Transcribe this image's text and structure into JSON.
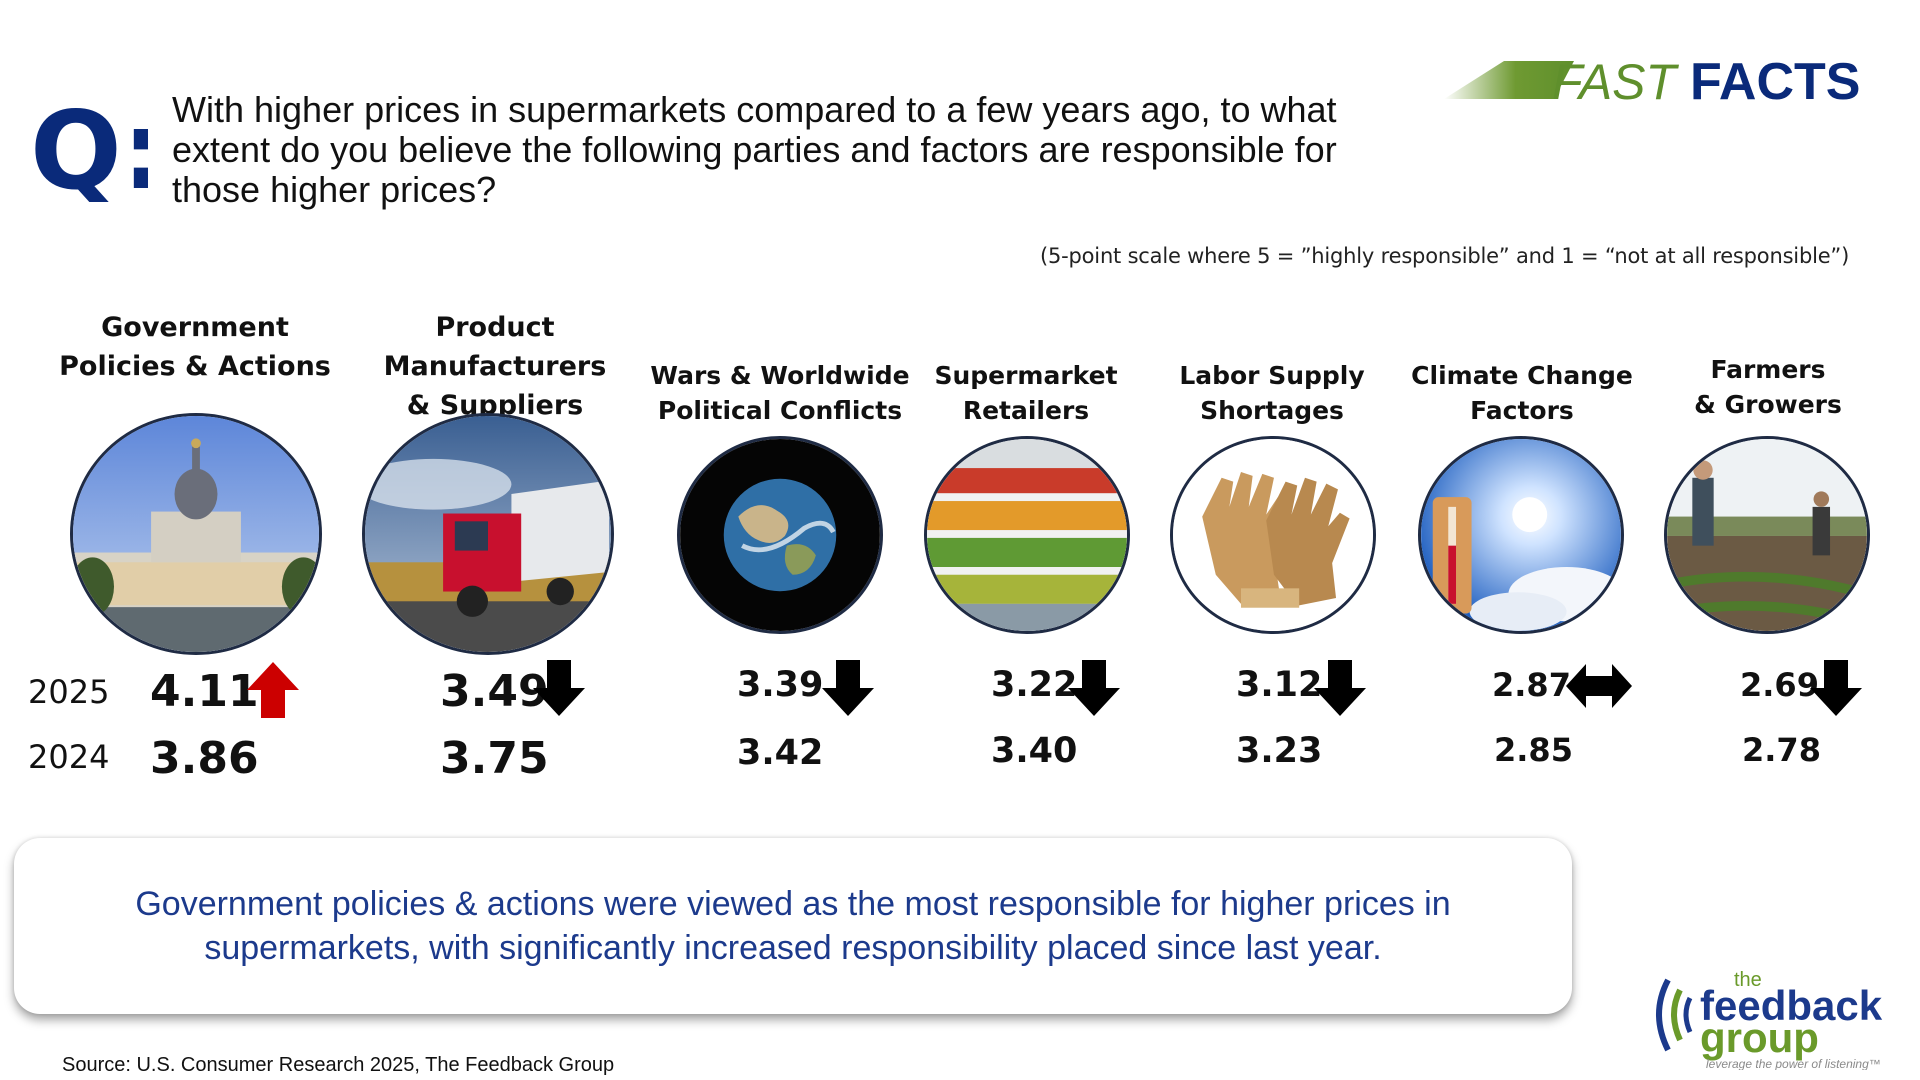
{
  "header": {
    "q_label": "Q:",
    "question": "With higher prices in supermarkets compared to a few years ago, to what extent do you believe the following parties and factors are responsible for those higher prices?",
    "brand_fast": "FAST",
    "brand_facts": "FACTS",
    "scale_note": "(5-point scale where 5 = ”highly responsible” and 1 = “not at all responsible”)"
  },
  "year_labels": {
    "current": "2025",
    "previous": "2024"
  },
  "chart_data": {
    "type": "table",
    "title": "",
    "categories": [
      "Government Policies & Actions",
      "Product Manufacturers & Suppliers",
      "Wars & Worldwide Political Conflicts",
      "Supermarket Retailers",
      "Labor Supply Shortages",
      "Climate Change Factors",
      "Farmers & Growers"
    ],
    "series": [
      {
        "name": "2025",
        "values": [
          4.11,
          3.49,
          3.39,
          3.22,
          3.12,
          2.87,
          2.69
        ]
      },
      {
        "name": "2024",
        "values": [
          3.86,
          3.75,
          3.42,
          3.4,
          3.23,
          2.85,
          2.78
        ]
      }
    ],
    "trend": [
      "up",
      "down",
      "down",
      "down",
      "down",
      "flat",
      "down"
    ],
    "colors": {
      "up": "#cc0000",
      "down": "#000000",
      "flat": "#000000"
    }
  },
  "items": [
    {
      "label": "Government\nPolicies & Actions",
      "v2025": "4.11",
      "v2024": "3.86",
      "image": "capitol-building-icon"
    },
    {
      "label": "Product Manufacturers\n& Suppliers",
      "v2025": "3.49",
      "v2024": "3.75",
      "image": "truck-icon"
    },
    {
      "label": "Wars & Worldwide\nPolitical Conflicts",
      "v2025": "3.39",
      "v2024": "3.42",
      "image": "globe-icon"
    },
    {
      "label": "Supermarket\nRetailers",
      "v2025": "3.22",
      "v2024": "3.40",
      "image": "produce-shelf-icon"
    },
    {
      "label": "Labor Supply\nShortages",
      "v2025": "3.12",
      "v2024": "3.23",
      "image": "work-gloves-icon"
    },
    {
      "label": "Climate Change\nFactors",
      "v2025": "2.87",
      "v2024": "2.85",
      "image": "sun-thermometer-icon"
    },
    {
      "label": "Farmers\n& Growers",
      "v2025": "2.69",
      "v2024": "2.78",
      "image": "farmers-field-icon"
    }
  ],
  "callout": "Government policies & actions were viewed as the most responsible for higher prices in supermarkets, with significantly increased responsibility placed since last year.",
  "source": "Source: U.S. Consumer Research 2025, The Feedback Group",
  "footer_logo": {
    "the": "the",
    "feedback": "feedback",
    "group": "group",
    "tagline": "leverage the power of listening™"
  },
  "palette": {
    "navy": "#0a2a7a",
    "callout_blue": "#1c3a8c",
    "logo_green": "#6a9a2a",
    "logo_gray": "#8a8a8a"
  }
}
